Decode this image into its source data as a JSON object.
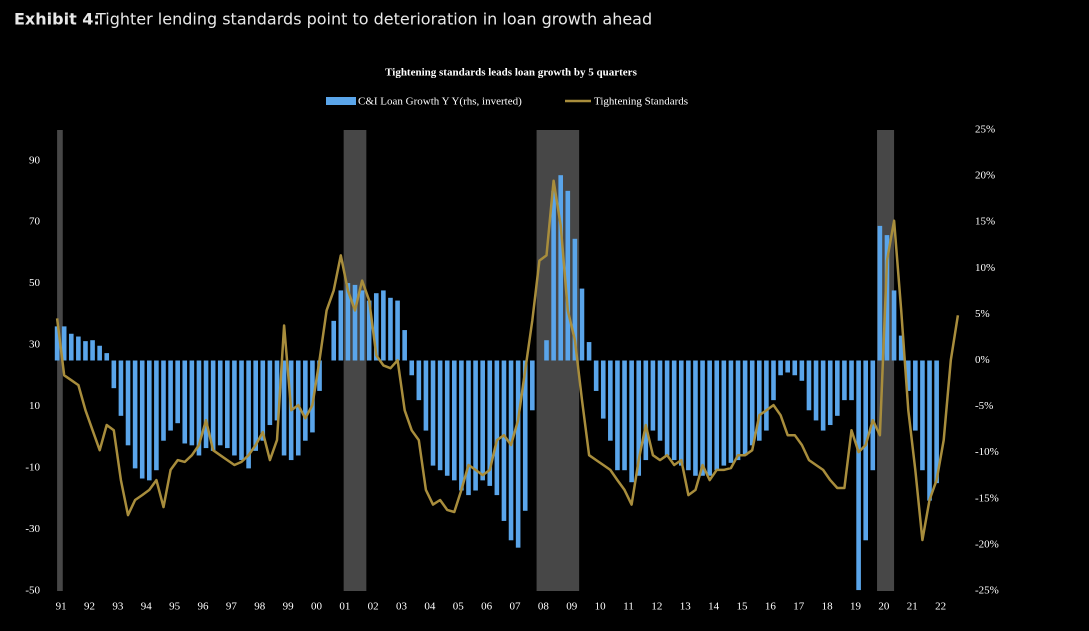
{
  "chart_data": {
    "type": "bar-line",
    "exhibit_label": "Exhibit 4:",
    "title": "Tighter lending standards point to deterioration in loan growth ahead",
    "subtitle": "Tightening standards leads loan growth by 5 quarters",
    "x": [
      1991,
      1991.25,
      1991.5,
      1991.75,
      1992,
      1992.25,
      1992.5,
      1992.75,
      1993,
      1993.25,
      1993.5,
      1993.75,
      1994,
      1994.25,
      1994.5,
      1994.75,
      1995,
      1995.25,
      1995.5,
      1995.75,
      1996,
      1996.25,
      1996.5,
      1996.75,
      1997,
      1997.25,
      1997.5,
      1997.75,
      1998,
      1998.25,
      1998.5,
      1998.75,
      1999,
      1999.25,
      1999.5,
      1999.75,
      2000,
      2000.25,
      2000.5,
      2000.75,
      2001,
      2001.25,
      2001.5,
      2001.75,
      2002,
      2002.25,
      2002.5,
      2002.75,
      2003,
      2003.25,
      2003.5,
      2003.75,
      2004,
      2004.25,
      2004.5,
      2004.75,
      2005,
      2005.25,
      2005.5,
      2005.75,
      2006,
      2006.25,
      2006.5,
      2006.75,
      2007,
      2007.25,
      2007.5,
      2007.75,
      2008,
      2008.25,
      2008.5,
      2008.75,
      2009,
      2009.25,
      2009.5,
      2009.75,
      2010,
      2010.25,
      2010.5,
      2010.75,
      2011,
      2011.25,
      2011.5,
      2011.75,
      2012,
      2012.25,
      2012.5,
      2012.75,
      2013,
      2013.25,
      2013.5,
      2013.75,
      2014,
      2014.25,
      2014.5,
      2014.75,
      2015,
      2015.25,
      2015.5,
      2015.75,
      2016,
      2016.25,
      2016.5,
      2016.75,
      2017,
      2017.25,
      2017.5,
      2017.75,
      2018,
      2018.25,
      2018.5,
      2018.75,
      2019,
      2019.25,
      2019.5,
      2019.75,
      2020,
      2020.25,
      2020.5,
      2020.75,
      2021,
      2021.25,
      2021.5,
      2021.75,
      2022,
      2022.25,
      2022.5,
      2022.75
    ],
    "series": [
      {
        "name": "C&I Loan Growth Y Y(rhs, inverted)",
        "color": "#5aa5ea",
        "axis": "y2",
        "values": [
          3.7,
          3.7,
          2.9,
          2.6,
          2.1,
          2.2,
          1.6,
          0.8,
          -3.0,
          -6.0,
          -9.2,
          -11.7,
          -12.8,
          -13.0,
          -11.9,
          -8.7,
          -7.6,
          -6.8,
          -9.0,
          -9.2,
          -10.3,
          -9.5,
          -9.8,
          -9.2,
          -9.5,
          -10.3,
          -10.8,
          -11.7,
          -9.8,
          -8.7,
          -7.0,
          -6.5,
          -10.3,
          -10.8,
          -10.3,
          -8.7,
          -7.8,
          -3.3,
          0,
          4.3,
          7.6,
          8.4,
          8.2,
          7.6,
          6.5,
          7.3,
          7.6,
          6.8,
          6.5,
          3.3,
          -1.6,
          -4.3,
          -7.6,
          -11.4,
          -11.9,
          -12.5,
          -13.0,
          -14.1,
          -14.6,
          -14.1,
          -13.0,
          -13.6,
          -14.6,
          -17.4,
          -19.5,
          -20.3,
          -16.3,
          -5.4,
          0,
          2.2,
          18.4,
          20.1,
          18.4,
          13.2,
          7.8,
          2.0,
          -3.3,
          -6.3,
          -8.7,
          -11.9,
          -11.9,
          -13.2,
          -12.5,
          -10.8,
          -7.6,
          -8.7,
          -10.3,
          -10.8,
          -11.4,
          -11.9,
          -12.5,
          -12.5,
          -12.5,
          -11.9,
          -11.4,
          -11.1,
          -10.8,
          -10.3,
          -9.2,
          -8.7,
          -7.6,
          -4.3,
          -1.6,
          -1.3,
          -1.6,
          -2.2,
          -5.4,
          -6.5,
          -7.6,
          -7.0,
          -6.0,
          -4.3,
          -4.3,
          -24.9,
          -19.5,
          -11.9,
          14.6,
          13.6,
          7.6,
          2.7,
          -3.3,
          -7.6,
          -11.9,
          -15.2,
          -13.3,
          null,
          null,
          null
        ]
      },
      {
        "name": "Tightening Standards",
        "color": "#a88d3c",
        "axis": "y",
        "values": [
          38.7,
          20.2,
          18.6,
          17,
          8.8,
          2.3,
          -4.2,
          4.0,
          2.3,
          -13.9,
          -25.3,
          -20.4,
          -18.8,
          -17.1,
          -13.9,
          -22.7,
          -10.6,
          -7.4,
          -8,
          -5.8,
          -2.5,
          5.6,
          -4.2,
          -5.8,
          -7.4,
          -9,
          -8,
          -5.8,
          -2.5,
          1.7,
          -7.4,
          -0.9,
          36.4,
          8.8,
          10.5,
          6.2,
          10.5,
          25.1,
          41.3,
          47.8,
          59.2,
          47.8,
          41.3,
          51,
          44.5,
          26.7,
          23.4,
          22.5,
          25.1,
          8.8,
          2.3,
          -0.9,
          -17.1,
          -21.9,
          -20.4,
          -23.6,
          -24.3,
          -17.1,
          -9,
          -10.6,
          -12.3,
          -10.6,
          -0.9,
          0.7,
          -2.5,
          5.6,
          21.8,
          38,
          57.5,
          59.2,
          83.5,
          68.9,
          41.3,
          31.6,
          12.1,
          -5.8,
          -7.4,
          -9,
          -10.6,
          -13.9,
          -17.1,
          -21.9,
          -7.4,
          4,
          -5.8,
          -7.4,
          -5.8,
          -9,
          -7.4,
          -18.8,
          -17.1,
          -9,
          -13.9,
          -10.6,
          -10.6,
          -10,
          -5.8,
          -5.8,
          -4.2,
          7.2,
          8.8,
          10.5,
          7.2,
          0.7,
          0.7,
          -2.5,
          -7.4,
          -9,
          -10.6,
          -13.9,
          -16.5,
          -16.5,
          2.3,
          -4.8,
          -2.5,
          5.6,
          0.7,
          57.5,
          70.5,
          41.3,
          8.8,
          -10.6,
          -33.4,
          -20.4,
          -13.9,
          -0.9,
          25.1,
          39.7
        ]
      }
    ],
    "shaded_periods": [
      [
        1991,
        1991.2
      ],
      [
        2001.1,
        2001.9
      ],
      [
        2007.9,
        2009.4
      ],
      [
        2019.9,
        2020.5
      ]
    ],
    "xlim": [
      1990.75,
      2023
    ],
    "xticks": [
      {
        "value": 1991,
        "label": "91"
      },
      {
        "value": 1992,
        "label": "92"
      },
      {
        "value": 1993,
        "label": "93"
      },
      {
        "value": 1994,
        "label": "94"
      },
      {
        "value": 1995,
        "label": "95"
      },
      {
        "value": 1996,
        "label": "96"
      },
      {
        "value": 1997,
        "label": "97"
      },
      {
        "value": 1998,
        "label": "98"
      },
      {
        "value": 1999,
        "label": "99"
      },
      {
        "value": 2000,
        "label": "00"
      },
      {
        "value": 2001,
        "label": "01"
      },
      {
        "value": 2002,
        "label": "02"
      },
      {
        "value": 2003,
        "label": "03"
      },
      {
        "value": 2004,
        "label": "04"
      },
      {
        "value": 2005,
        "label": "05"
      },
      {
        "value": 2006,
        "label": "06"
      },
      {
        "value": 2007,
        "label": "07"
      },
      {
        "value": 2008,
        "label": "08"
      },
      {
        "value": 2009,
        "label": "09"
      },
      {
        "value": 2010,
        "label": "10"
      },
      {
        "value": 2011,
        "label": "11"
      },
      {
        "value": 2012,
        "label": "12"
      },
      {
        "value": 2013,
        "label": "13"
      },
      {
        "value": 2014,
        "label": "14"
      },
      {
        "value": 2015,
        "label": "15"
      },
      {
        "value": 2016,
        "label": "16"
      },
      {
        "value": 2017,
        "label": "17"
      },
      {
        "value": 2018,
        "label": "18"
      },
      {
        "value": 2019,
        "label": "19"
      },
      {
        "value": 2020,
        "label": "20"
      },
      {
        "value": 2021,
        "label": "21"
      },
      {
        "value": 2022,
        "label": "22"
      }
    ],
    "ylim": [
      -50,
      100
    ],
    "yticks": [
      -50,
      -30,
      -10,
      10,
      30,
      50,
      70,
      90
    ],
    "y2lim": [
      -25,
      25
    ],
    "y2ticks": [
      {
        "value": -25,
        "label": "-25%"
      },
      {
        "value": -20,
        "label": "-20%"
      },
      {
        "value": -15,
        "label": "-15%"
      },
      {
        "value": -10,
        "label": "-10%"
      },
      {
        "value": -5,
        "label": "-5%"
      },
      {
        "value": 0,
        "label": "0%"
      },
      {
        "value": 5,
        "label": "5%"
      },
      {
        "value": 10,
        "label": "10%"
      },
      {
        "value": 15,
        "label": "15%"
      },
      {
        "value": 20,
        "label": "20%"
      },
      {
        "value": 25,
        "label": "25%"
      }
    ],
    "shade_color": "#474747"
  }
}
